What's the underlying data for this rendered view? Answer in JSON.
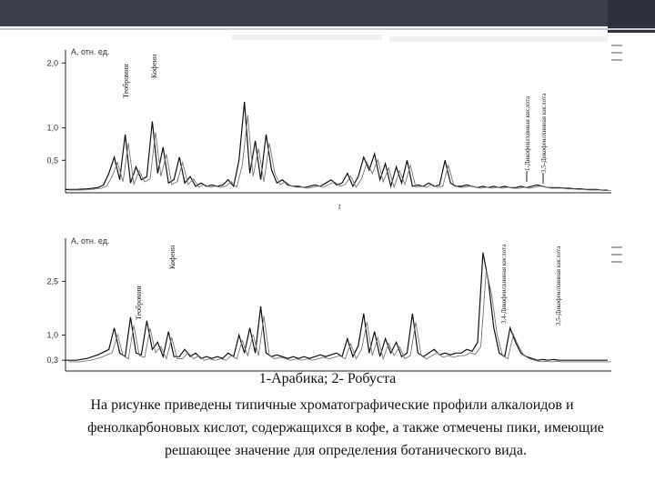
{
  "caption": "1-Арабика; 2- Робуста",
  "paragraph": "На рисунке приведены типичные хроматографические профили алкалоидов и фенолкарбоновых кислот, содержащихся в кофе, а также отмечены пики, имеющие решающее значение для определения ботанического вида.",
  "chart_data": [
    {
      "type": "line",
      "ylabel": "A, отн. ед.",
      "ytick_labels": [
        "2,0",
        "1,0",
        "0,5"
      ],
      "yticks": [
        2.0,
        1.0,
        0.5
      ],
      "ylim": [
        0.0,
        2.2
      ],
      "x_axis_mark": "t",
      "annotations": [
        "Теобромин",
        "Кофеин",
        "1-Дикофеилхинная кислота",
        "3,5-Дикофеилхинная кислота"
      ],
      "series": [
        {
          "x": [
            0,
            2,
            4,
            6,
            7,
            8,
            9,
            10,
            11,
            12,
            13,
            14,
            15,
            16,
            17,
            18,
            19,
            20,
            21,
            22,
            23,
            24,
            25,
            26,
            27,
            28,
            29,
            30,
            31,
            32,
            33,
            34,
            35,
            36,
            37,
            38,
            39,
            40,
            41,
            42,
            43,
            44,
            45,
            46,
            47,
            48,
            49,
            50,
            51,
            52,
            53,
            54,
            55,
            56,
            57,
            58,
            59,
            60,
            61,
            62,
            63,
            64,
            65,
            66,
            67,
            68,
            69,
            70,
            71,
            72,
            73,
            74,
            75,
            76,
            77,
            78,
            79,
            80,
            81,
            82,
            83,
            84,
            85,
            86,
            87,
            88,
            89,
            90,
            91,
            92,
            93,
            94,
            95,
            96,
            97,
            98,
            99,
            100
          ],
          "y": [
            0.05,
            0.05,
            0.06,
            0.08,
            0.12,
            0.3,
            0.55,
            0.2,
            0.9,
            0.15,
            0.4,
            0.2,
            0.25,
            1.1,
            0.3,
            0.7,
            0.15,
            0.2,
            0.55,
            0.15,
            0.25,
            0.1,
            0.15,
            0.1,
            0.12,
            0.1,
            0.12,
            0.2,
            0.1,
            0.5,
            1.4,
            0.3,
            0.8,
            0.2,
            0.9,
            0.35,
            0.15,
            0.2,
            0.12,
            0.1,
            0.1,
            0.08,
            0.1,
            0.12,
            0.1,
            0.15,
            0.2,
            0.12,
            0.15,
            0.3,
            0.1,
            0.25,
            0.55,
            0.35,
            0.6,
            0.2,
            0.45,
            0.1,
            0.4,
            0.15,
            0.5,
            0.1,
            0.12,
            0.1,
            0.15,
            0.1,
            0.12,
            0.5,
            0.15,
            0.1,
            0.1,
            0.12,
            0.1,
            0.08,
            0.1,
            0.08,
            0.1,
            0.08,
            0.1,
            0.08,
            0.08,
            0.1,
            0.08,
            0.1,
            0.12,
            0.1,
            0.08,
            0.08,
            0.08,
            0.07,
            0.07,
            0.06,
            0.06,
            0.05,
            0.05,
            0.05,
            0.04,
            0.04
          ]
        }
      ]
    },
    {
      "type": "line",
      "ylabel": "A, отн. ед.",
      "ytick_labels": [
        "2,5",
        "1,0",
        "0,3"
      ],
      "yticks": [
        2.5,
        1.0,
        0.3
      ],
      "ylim": [
        0.0,
        3.7
      ],
      "annotations": [
        "Кофеин",
        "Теобромин",
        "3,4-Дикофеилхинная кислота",
        "3,5-Дикофеилхинная кислота"
      ],
      "series": [
        {
          "x": [
            0,
            2,
            4,
            6,
            8,
            9,
            10,
            11,
            12,
            13,
            14,
            15,
            16,
            17,
            18,
            19,
            20,
            21,
            22,
            23,
            24,
            25,
            26,
            27,
            28,
            29,
            30,
            31,
            32,
            33,
            34,
            35,
            36,
            37,
            38,
            39,
            40,
            41,
            42,
            43,
            44,
            45,
            46,
            47,
            48,
            49,
            50,
            51,
            52,
            53,
            54,
            55,
            56,
            57,
            58,
            59,
            60,
            61,
            62,
            63,
            64,
            65,
            66,
            67,
            68,
            69,
            70,
            71,
            72,
            73,
            74,
            75,
            76,
            77,
            78,
            79,
            80,
            81,
            82,
            83,
            84,
            85,
            86,
            87,
            88,
            89,
            90,
            91,
            92,
            93,
            94,
            95,
            96,
            97,
            98,
            99,
            100
          ],
          "y": [
            0.3,
            0.3,
            0.35,
            0.45,
            0.6,
            1.2,
            0.5,
            0.4,
            1.5,
            0.5,
            0.45,
            1.4,
            0.6,
            0.8,
            0.4,
            1.1,
            0.4,
            0.4,
            0.6,
            0.4,
            0.5,
            0.35,
            0.4,
            0.35,
            0.4,
            0.35,
            0.5,
            0.4,
            1.0,
            0.5,
            1.2,
            0.5,
            1.8,
            0.5,
            0.4,
            0.45,
            0.4,
            0.35,
            0.4,
            0.35,
            0.4,
            0.35,
            0.4,
            0.45,
            0.4,
            0.45,
            0.5,
            0.4,
            0.9,
            0.4,
            0.7,
            1.6,
            0.5,
            1.1,
            0.4,
            0.9,
            0.5,
            0.8,
            0.4,
            0.5,
            1.6,
            0.5,
            0.4,
            0.5,
            0.6,
            0.45,
            0.5,
            0.45,
            0.5,
            0.5,
            0.6,
            0.55,
            0.8,
            3.3,
            2.5,
            1.2,
            0.5,
            0.4,
            1.2,
            0.8,
            0.5,
            0.4,
            0.35,
            0.3,
            0.32,
            0.3,
            0.32,
            0.3,
            0.3,
            0.3,
            0.3,
            0.3,
            0.3,
            0.3,
            0.3,
            0.3,
            0.3
          ]
        }
      ]
    }
  ]
}
